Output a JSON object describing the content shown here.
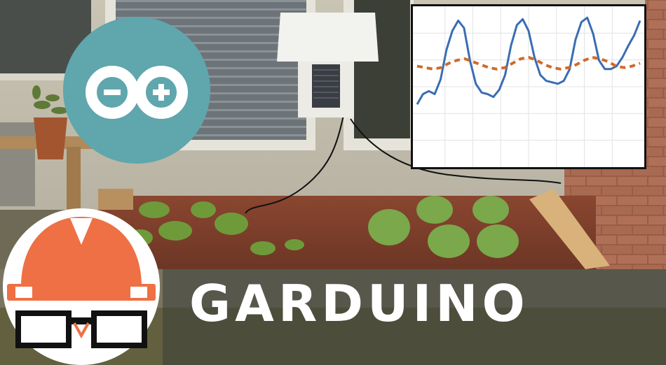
{
  "title": "GARDUINO",
  "colors": {
    "arduino_teal": "#5fa6ad",
    "helmet_orange": "#ee7044",
    "chart_blue": "#3a6db3",
    "chart_orange": "#d16a2a"
  },
  "icons": {
    "arduino_logo": "arduino-logo-icon",
    "instructables_robot": "instructables-robot-icon"
  },
  "chart_data": {
    "type": "line",
    "series": [
      {
        "values": [
          0.62,
          0.55,
          0.53,
          0.55,
          0.45,
          0.25,
          0.12,
          0.05,
          0.1,
          0.32,
          0.48,
          0.54,
          0.55,
          0.57,
          0.52,
          0.42,
          0.22,
          0.08,
          0.04,
          0.12,
          0.3,
          0.42,
          0.46,
          0.47,
          0.48,
          0.46,
          0.38,
          0.18,
          0.06,
          0.03,
          0.14,
          0.32,
          0.38,
          0.38,
          0.36,
          0.3,
          0.22,
          0.15,
          0.05
        ]
      },
      {
        "values": [
          0.36,
          0.37,
          0.38,
          0.37,
          0.34,
          0.32,
          0.31,
          0.33,
          0.35,
          0.37,
          0.38,
          0.37,
          0.34,
          0.31,
          0.3,
          0.32,
          0.35,
          0.37,
          0.38,
          0.37,
          0.35,
          0.32,
          0.3,
          0.31,
          0.33,
          0.36,
          0.37,
          0.36,
          0.34
        ]
      }
    ],
    "grid": true
  }
}
